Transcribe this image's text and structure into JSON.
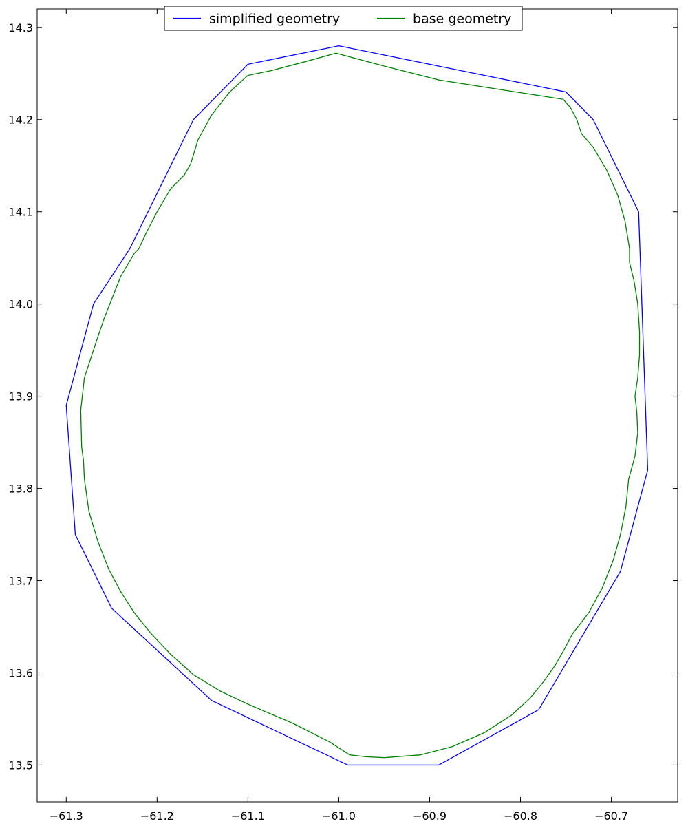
{
  "chart_data": {
    "type": "line",
    "title": "",
    "xlabel": "",
    "ylabel": "",
    "xlim": [
      -61.332,
      -60.627
    ],
    "ylim": [
      13.46,
      14.32
    ],
    "x_ticks": [
      -61.3,
      -61.2,
      -61.1,
      -61.0,
      -60.9,
      -60.8,
      -60.7
    ],
    "x_tick_labels": [
      "−61.3",
      "−61.2",
      "−61.1",
      "−61.0",
      "−60.9",
      "−60.8",
      "−60.7"
    ],
    "y_ticks": [
      13.5,
      13.6,
      13.7,
      13.8,
      13.9,
      14.0,
      14.1,
      14.2,
      14.3
    ],
    "y_tick_labels": [
      "13.5",
      "13.6",
      "13.7",
      "13.8",
      "13.9",
      "14.0",
      "14.1",
      "14.2",
      "14.3"
    ],
    "grid": false,
    "legend": {
      "placement": "top-center",
      "columns": 2
    },
    "series": [
      {
        "name": "simplified geometry",
        "color": "#0000ff",
        "points": [
          [
            -61.0,
            14.28
          ],
          [
            -60.75,
            14.23
          ],
          [
            -60.72,
            14.2
          ],
          [
            -60.67,
            14.1
          ],
          [
            -60.66,
            13.82
          ],
          [
            -60.69,
            13.71
          ],
          [
            -60.78,
            13.56
          ],
          [
            -60.89,
            13.5
          ],
          [
            -60.99,
            13.5
          ],
          [
            -61.14,
            13.57
          ],
          [
            -61.25,
            13.67
          ],
          [
            -61.29,
            13.75
          ],
          [
            -61.3,
            13.89
          ],
          [
            -61.27,
            14.0
          ],
          [
            -61.23,
            14.06
          ],
          [
            -61.16,
            14.2
          ],
          [
            -61.1,
            14.26
          ],
          [
            -61.0,
            14.28
          ]
        ]
      },
      {
        "name": "base geometry",
        "color": "#008000",
        "points": [
          [
            -61.003,
            14.272
          ],
          [
            -60.95,
            14.258
          ],
          [
            -60.89,
            14.243
          ],
          [
            -60.753,
            14.222
          ],
          [
            -60.745,
            14.213
          ],
          [
            -60.738,
            14.2
          ],
          [
            -60.733,
            14.185
          ],
          [
            -60.72,
            14.17
          ],
          [
            -60.705,
            14.145
          ],
          [
            -60.693,
            14.118
          ],
          [
            -60.685,
            14.09
          ],
          [
            -60.68,
            14.06
          ],
          [
            -60.68,
            14.045
          ],
          [
            -60.675,
            14.025
          ],
          [
            -60.671,
            14.0
          ],
          [
            -60.669,
            13.97
          ],
          [
            -60.669,
            13.945
          ],
          [
            -60.671,
            13.92
          ],
          [
            -60.674,
            13.9
          ],
          [
            -60.672,
            13.883
          ],
          [
            -60.671,
            13.86
          ],
          [
            -60.674,
            13.835
          ],
          [
            -60.681,
            13.81
          ],
          [
            -60.684,
            13.78
          ],
          [
            -60.69,
            13.75
          ],
          [
            -60.698,
            13.722
          ],
          [
            -60.71,
            13.692
          ],
          [
            -60.725,
            13.665
          ],
          [
            -60.743,
            13.642
          ],
          [
            -60.752,
            13.625
          ],
          [
            -60.762,
            13.608
          ],
          [
            -60.775,
            13.59
          ],
          [
            -60.79,
            13.572
          ],
          [
            -60.81,
            13.554
          ],
          [
            -60.84,
            13.535
          ],
          [
            -60.875,
            13.52
          ],
          [
            -60.91,
            13.511
          ],
          [
            -60.95,
            13.508
          ],
          [
            -60.97,
            13.509
          ],
          [
            -60.988,
            13.511
          ],
          [
            -61.01,
            13.525
          ],
          [
            -61.05,
            13.545
          ],
          [
            -61.1,
            13.566
          ],
          [
            -61.13,
            13.58
          ],
          [
            -61.16,
            13.598
          ],
          [
            -61.185,
            13.62
          ],
          [
            -61.207,
            13.643
          ],
          [
            -61.225,
            13.665
          ],
          [
            -61.24,
            13.688
          ],
          [
            -61.253,
            13.712
          ],
          [
            -61.265,
            13.742
          ],
          [
            -61.275,
            13.775
          ],
          [
            -61.28,
            13.81
          ],
          [
            -61.281,
            13.83
          ],
          [
            -61.283,
            13.845
          ],
          [
            -61.284,
            13.885
          ],
          [
            -61.28,
            13.92
          ],
          [
            -61.27,
            13.95
          ],
          [
            -61.265,
            13.965
          ],
          [
            -61.258,
            13.985
          ],
          [
            -61.25,
            14.005
          ],
          [
            -61.24,
            14.03
          ],
          [
            -61.225,
            14.055
          ],
          [
            -61.22,
            14.06
          ],
          [
            -61.212,
            14.077
          ],
          [
            -61.2,
            14.1
          ],
          [
            -61.185,
            14.125
          ],
          [
            -61.17,
            14.14
          ],
          [
            -61.163,
            14.152
          ],
          [
            -61.155,
            14.178
          ],
          [
            -61.14,
            14.205
          ],
          [
            -61.12,
            14.23
          ],
          [
            -61.1,
            14.248
          ],
          [
            -61.075,
            14.253
          ],
          [
            -61.04,
            14.262
          ],
          [
            -61.003,
            14.272
          ]
        ]
      }
    ]
  }
}
